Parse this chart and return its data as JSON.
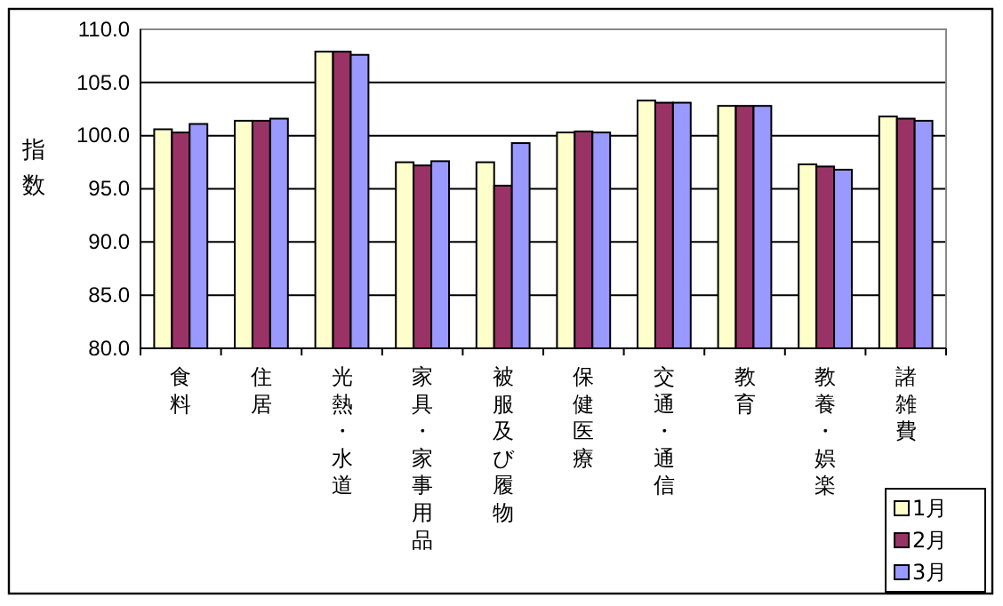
{
  "chart_data": {
    "type": "bar",
    "ylabel": "指数",
    "categories": [
      "食料",
      "住居",
      "光熱・水道",
      "家具・家事用品",
      "被服及び履物",
      "保健医療",
      "交通・通信",
      "教育",
      "教養・娯楽",
      "諸雑費"
    ],
    "series": [
      {
        "name": "1月",
        "color": "#ffffcc",
        "values": [
          100.6,
          101.4,
          107.9,
          97.5,
          97.5,
          100.3,
          103.3,
          102.8,
          97.3,
          101.8
        ]
      },
      {
        "name": "2月",
        "color": "#993366",
        "values": [
          100.3,
          101.4,
          107.9,
          97.2,
          95.3,
          100.4,
          103.1,
          102.8,
          97.1,
          101.6
        ]
      },
      {
        "name": "3月",
        "color": "#9999ff",
        "values": [
          101.1,
          101.6,
          107.6,
          97.6,
          99.3,
          100.3,
          103.1,
          102.8,
          96.8,
          101.4
        ]
      }
    ],
    "ylim": [
      80,
      110
    ],
    "yticks": [
      {
        "value": 80,
        "label": "80.0"
      },
      {
        "value": 85,
        "label": "85.0"
      },
      {
        "value": 90,
        "label": "90.0"
      },
      {
        "value": 95,
        "label": "95.0"
      },
      {
        "value": 100,
        "label": "100.0"
      },
      {
        "value": 105,
        "label": "105.0"
      },
      {
        "value": 110,
        "label": "110.0"
      }
    ],
    "grid": "y",
    "legend": "bottom right"
  }
}
